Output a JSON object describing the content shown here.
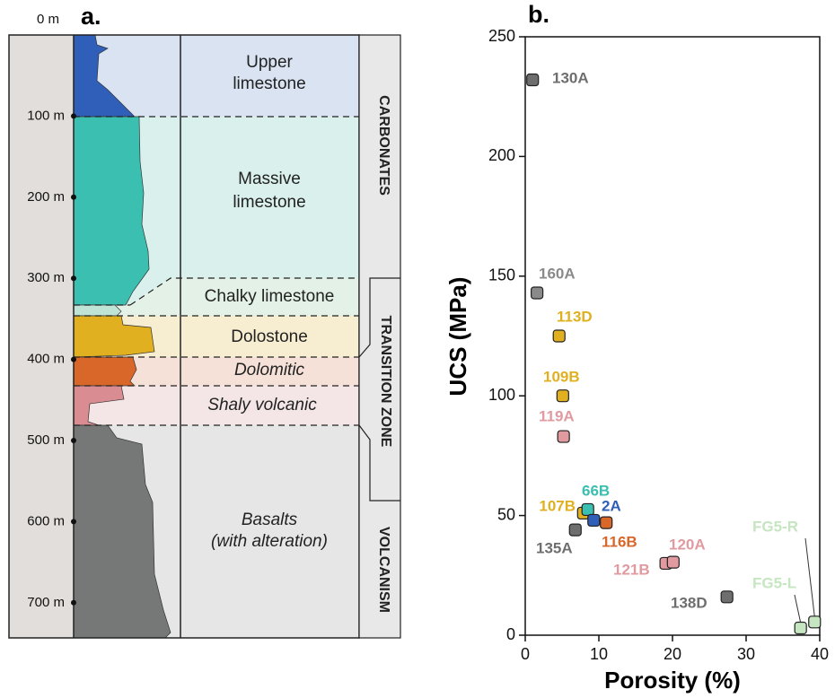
{
  "panel_a": {
    "label": "a.",
    "depth_labels": [
      "0 m",
      "100 m",
      "200 m",
      "300 m",
      "400 m",
      "500 m",
      "600 m",
      "700 m"
    ],
    "units": [
      {
        "name": "Upper limestone"
      },
      {
        "name": "Massive limestone"
      },
      {
        "name": "Chalky limestone"
      },
      {
        "name": "Dolostone"
      },
      {
        "name": "Dolomitic"
      },
      {
        "name": "Shaly volcanic"
      },
      {
        "name": "Basalts (with alteration)"
      }
    ],
    "zones": [
      "CARBONATES",
      "TRANSITION ZONE",
      "VOLCANISM"
    ]
  },
  "chart_data": {
    "type": "scatter",
    "title": "b.",
    "xlabel": "Porosity (%)",
    "ylabel": "UCS (MPa)",
    "xlim": [
      0,
      40
    ],
    "ylim": [
      0,
      250
    ],
    "xticks": [
      0,
      10,
      20,
      30,
      40
    ],
    "yticks": [
      0,
      50,
      100,
      150,
      200,
      250
    ],
    "points": [
      {
        "name": "130A",
        "color": "#6e6e6e",
        "x": 1.0,
        "y": 232
      },
      {
        "name": "160A",
        "color": "#8a8a8a",
        "x": 1.6,
        "y": 143
      },
      {
        "name": "113D",
        "color": "#e0b020",
        "x": 4.6,
        "y": 125
      },
      {
        "name": "109B",
        "color": "#e0b020",
        "x": 5.1,
        "y": 100
      },
      {
        "name": "119A",
        "color": "#e09aa0",
        "x": 5.2,
        "y": 83
      },
      {
        "name": "107B",
        "color": "#e0b020",
        "x": 7.9,
        "y": 51
      },
      {
        "name": "66B",
        "color": "#3bbfb0",
        "x": 8.5,
        "y": 52.5
      },
      {
        "name": "2A",
        "color": "#2f5fb8",
        "x": 9.3,
        "y": 48
      },
      {
        "name": "116B",
        "color": "#d9672a",
        "x": 11.0,
        "y": 47
      },
      {
        "name": "135A",
        "color": "#6e6e6e",
        "x": 6.8,
        "y": 44
      },
      {
        "name": "121B",
        "color": "#e09aa0",
        "x": 19.1,
        "y": 30
      },
      {
        "name": "120A",
        "color": "#e09aa0",
        "x": 20.1,
        "y": 30.5
      },
      {
        "name": "138D",
        "color": "#6e6e6e",
        "x": 27.4,
        "y": 16
      },
      {
        "name": "FG5-L",
        "color": "#c5e6c0",
        "x": 37.4,
        "y": 3
      },
      {
        "name": "FG5-R",
        "color": "#c5e6c0",
        "x": 39.3,
        "y": 5.5
      }
    ]
  }
}
